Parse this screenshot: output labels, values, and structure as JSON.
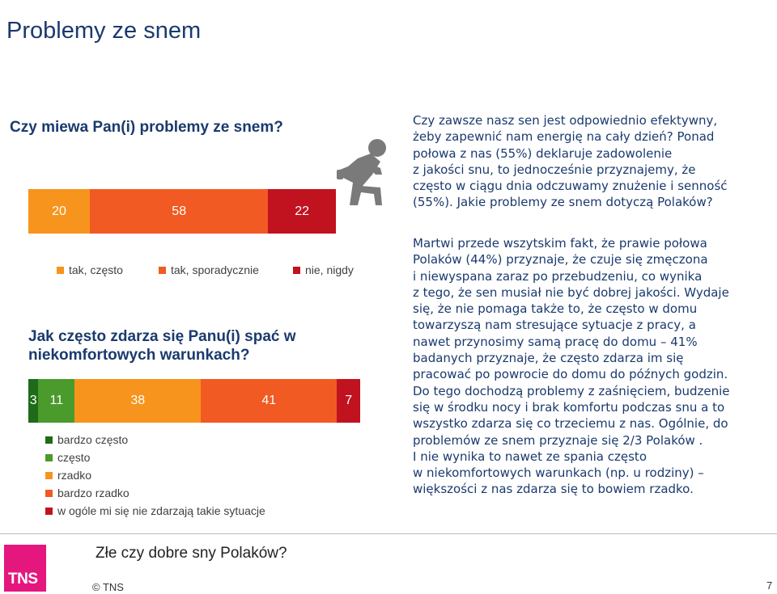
{
  "page": {
    "title": "Problemy ze snem",
    "footer_question": "Złe czy dobre sny Polaków?",
    "copyright": "© TNS",
    "page_number": "7",
    "logo_text": "TNS"
  },
  "question1": "Czy miewa Pan(i) problemy ze snem?",
  "question2": "Jak często zdarza się Panu(i) spać w niekomfortowych warunkach?",
  "paragraph1": "Czy zawsze nasz sen jest odpowiednio efektywny, żeby zapewnić nam energię na cały dzień? Ponad połowa z nas (55%) deklaruje zadowolenie z jakości snu, to jednocześnie przyznajemy, że często w ciągu dnia odczuwamy znużenie i senność (55%). Jakie problemy ze snem dotyczą Polaków?",
  "paragraph1_lines": [
    "Czy zawsze nasz sen jest odpowiednio efektywny,",
    "żeby zapewnić nam energię na cały dzień? Ponad",
    "połowa z nas (55%) deklaruje zadowolenie",
    "z jakości snu, to jednocześnie przyznajemy, że",
    "często w ciągu dnia odczuwamy znużenie i senność",
    "(55%). Jakie problemy ze snem dotyczą Polaków?"
  ],
  "paragraph2_lines": [
    "Martwi przede wszytskim fakt, że prawie połowa",
    "Polaków (44%) przyznaje, że czuje się zmęczona",
    "i niewyspana zaraz po przebudzeniu, co wynika",
    "z tego, że sen musiał nie być dobrej jakości. Wydaje",
    "się, że nie pomaga także to, że często w domu",
    "towarzyszą nam stresujące sytuacje z pracy, a",
    "nawet przynosimy samą pracę do domu – 41%",
    "badanych przyznaje, że często zdarza im się",
    "pracować  po powrocie do domu do późnych godzin.",
    "Do tego dochodzą problemy z zaśnięciem, budzenie",
    "się w środku nocy i brak komfortu podczas snu a to",
    "wszystko zdarza się co trzeciemu z nas. Ogólnie, do",
    "problemów ze snem przyznaje się 2/3 Polaków .",
    "I nie wynika to nawet ze spania często",
    "w niekomfortowych warunkach (np. u rodziny) –",
    "większości z nas zdarza się to bowiem rzadko."
  ],
  "chart_data": [
    {
      "type": "bar",
      "orientation": "horizontal-stacked",
      "title": "Czy miewa Pan(i) problemy ze snem?",
      "categories": [
        "tak, często",
        "tak, sporadycznie",
        "nie, nigdy"
      ],
      "values": [
        20,
        58,
        22
      ],
      "labels": [
        "20",
        "58",
        "22"
      ],
      "colors": [
        "#f7941d",
        "#f15a22",
        "#c1121f"
      ],
      "legend": [
        "tak, często",
        "tak, sporadycznie",
        "nie, nigdy"
      ],
      "legend_position": "bottom"
    },
    {
      "type": "bar",
      "orientation": "horizontal-stacked",
      "title": "Jak często zdarza się Panu(i) spać w niekomfortowych warunkach?",
      "categories": [
        "bardzo często",
        "często",
        "rzadko",
        "bardzo rzadko",
        "w ogóle mi się nie zdarzają takie sytuacje"
      ],
      "values": [
        3,
        11,
        38,
        41,
        7
      ],
      "labels": [
        "3",
        "11",
        "38",
        "41",
        "7"
      ],
      "colors": [
        "#1e6b1a",
        "#4a9a2c",
        "#f7941d",
        "#f15a22",
        "#c1121f"
      ],
      "legend": [
        "bardzo często",
        "często",
        "rzadko",
        "bardzo rzadko",
        "w ogóle mi się nie zdarzają takie sytuacje"
      ],
      "legend_position": "bottom"
    }
  ]
}
